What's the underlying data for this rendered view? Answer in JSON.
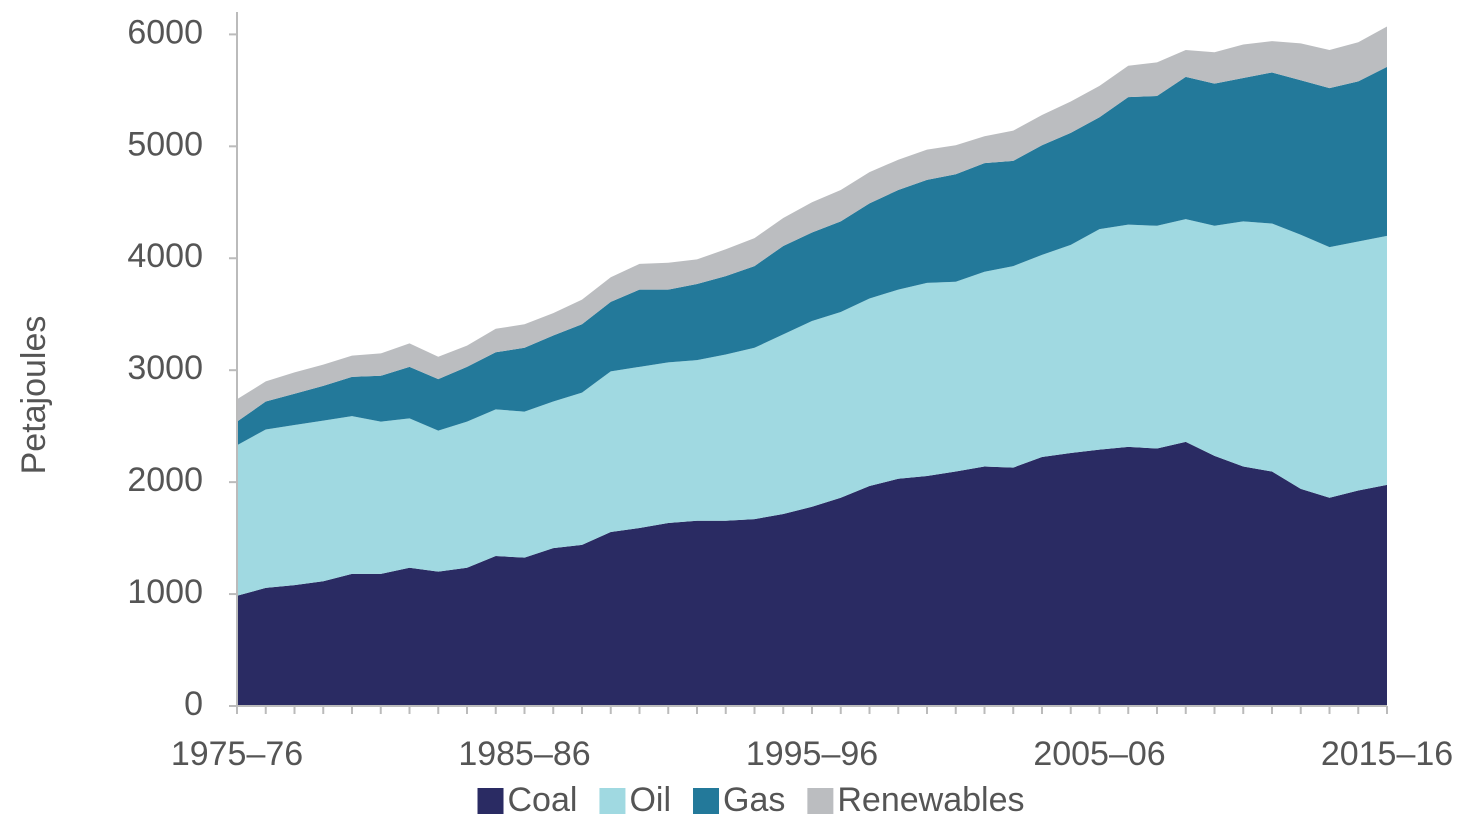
{
  "chart_data": {
    "type": "stacked_area",
    "y_label": "Petajoules",
    "categories": [
      "1975–76",
      null,
      null,
      null,
      null,
      null,
      null,
      null,
      null,
      null,
      "1985–86",
      null,
      null,
      null,
      null,
      null,
      null,
      null,
      null,
      null,
      "1995–96",
      null,
      null,
      null,
      null,
      null,
      null,
      null,
      null,
      null,
      "2005–06",
      null,
      null,
      null,
      null,
      null,
      null,
      null,
      null,
      null,
      "2015–16"
    ],
    "series": [
      {
        "name": "Coal",
        "color": "#2a2b63",
        "values": [
          985,
          1055,
          1080,
          1115,
          1180,
          1180,
          1235,
          1200,
          1235,
          1340,
          1325,
          1410,
          1440,
          1555,
          1590,
          1635,
          1655,
          1655,
          1670,
          1715,
          1780,
          1860,
          1965,
          2030,
          2055,
          2095,
          2140,
          2130,
          2225,
          2260,
          2290,
          2315,
          2300,
          2360,
          2235,
          2140,
          2095,
          1940,
          1860,
          1925,
          1975
        ]
      },
      {
        "name": "Oil",
        "color": "#a0d9e1",
        "values": [
          1345,
          1415,
          1430,
          1435,
          1410,
          1360,
          1335,
          1260,
          1305,
          1310,
          1305,
          1310,
          1360,
          1435,
          1440,
          1435,
          1435,
          1485,
          1530,
          1605,
          1660,
          1660,
          1675,
          1690,
          1725,
          1695,
          1740,
          1800,
          1805,
          1860,
          1970,
          1985,
          1990,
          1990,
          2055,
          2190,
          2215,
          2270,
          2240,
          2225,
          2225
        ]
      },
      {
        "name": "Gas",
        "color": "#23799a",
        "values": [
          210,
          250,
          280,
          310,
          350,
          410,
          460,
          460,
          490,
          510,
          570,
          590,
          610,
          620,
          690,
          650,
          680,
          700,
          730,
          790,
          790,
          810,
          850,
          890,
          920,
          960,
          970,
          940,
          980,
          1000,
          1000,
          1140,
          1160,
          1270,
          1270,
          1280,
          1350,
          1380,
          1420,
          1430,
          1510
        ]
      },
      {
        "name": "Renewables",
        "color": "#bbbdc0",
        "values": [
          200,
          180,
          190,
          190,
          190,
          200,
          210,
          200,
          190,
          210,
          210,
          200,
          220,
          220,
          230,
          240,
          220,
          240,
          250,
          250,
          270,
          280,
          280,
          270,
          270,
          260,
          240,
          270,
          270,
          280,
          280,
          280,
          300,
          240,
          280,
          300,
          280,
          330,
          340,
          350,
          360
        ]
      }
    ],
    "ylim": [
      0,
      6200
    ],
    "yticks": [
      0,
      1000,
      2000,
      3000,
      4000,
      5000,
      6000
    ],
    "grid": false,
    "legend": "bottom"
  }
}
